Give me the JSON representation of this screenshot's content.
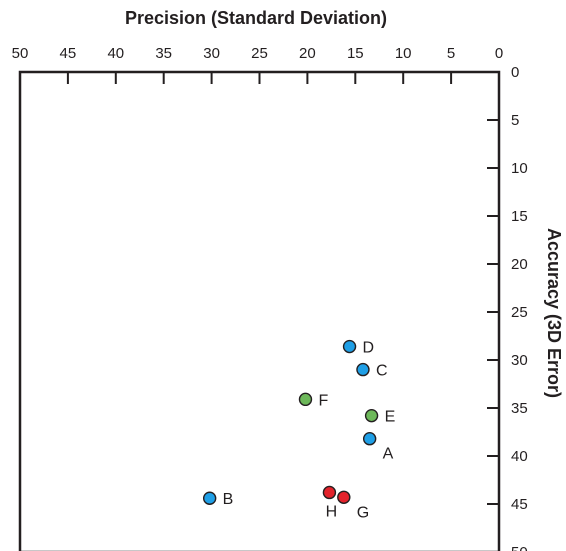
{
  "chart_data": {
    "type": "scatter",
    "title": "",
    "xlabel": "Precision (Standard Deviation)",
    "ylabel": "Accuracy (3D Error)",
    "xlim": [
      50,
      0
    ],
    "ylim": [
      0,
      50
    ],
    "x_axis_position": "top",
    "y_axis_position": "right",
    "x_reversed": true,
    "y_reversed": true,
    "grid": false,
    "xticks": [
      50,
      45,
      40,
      35,
      30,
      25,
      20,
      15,
      10,
      5,
      0
    ],
    "yticks": [
      0,
      5,
      10,
      15,
      20,
      25,
      30,
      35,
      40,
      45,
      50
    ],
    "colors": {
      "blue": "#1f9fe6",
      "green": "#6db85a",
      "red": "#e3222b",
      "axis": "#231f20"
    },
    "points": [
      {
        "label": "A",
        "x": 13.5,
        "y": 38.2,
        "color": "blue",
        "label_pos": "below-right"
      },
      {
        "label": "B",
        "x": 30.2,
        "y": 44.4,
        "color": "blue",
        "label_pos": "right"
      },
      {
        "label": "C",
        "x": 14.2,
        "y": 31.0,
        "color": "blue",
        "label_pos": "right"
      },
      {
        "label": "D",
        "x": 15.6,
        "y": 28.6,
        "color": "blue",
        "label_pos": "right"
      },
      {
        "label": "E",
        "x": 13.3,
        "y": 35.8,
        "color": "green",
        "label_pos": "right"
      },
      {
        "label": "F",
        "x": 20.2,
        "y": 34.1,
        "color": "green",
        "label_pos": "right"
      },
      {
        "label": "G",
        "x": 16.2,
        "y": 44.3,
        "color": "red",
        "label_pos": "below-right"
      },
      {
        "label": "H",
        "x": 17.7,
        "y": 43.8,
        "color": "red",
        "label_pos": "below"
      }
    ]
  }
}
